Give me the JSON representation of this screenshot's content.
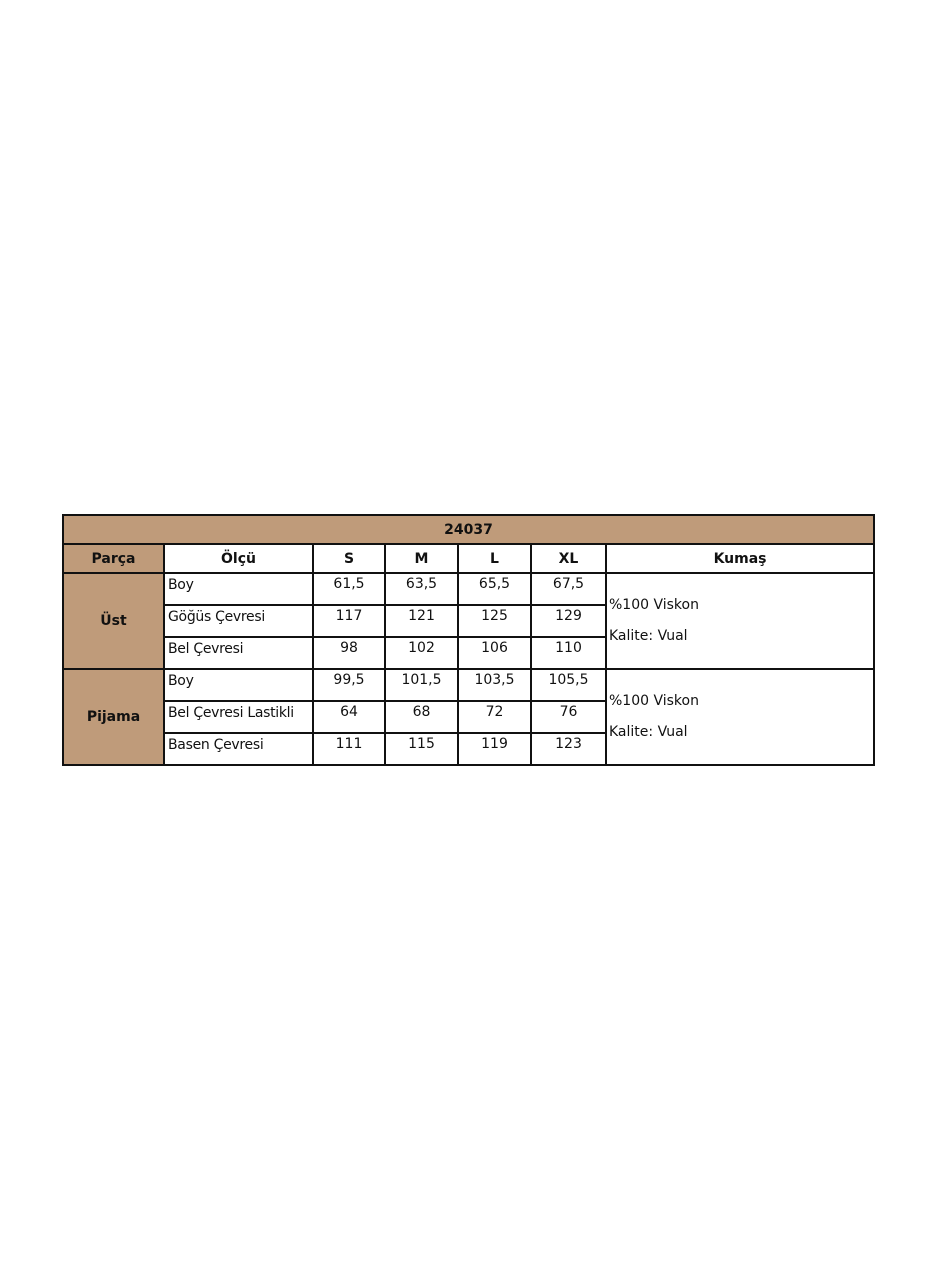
{
  "title": "24037",
  "headers": {
    "part": "Parça",
    "measure": "Ölçü",
    "sizes": [
      "S",
      "M",
      "L",
      "XL"
    ],
    "fabric": "Kumaş"
  },
  "colors": {
    "header_fill": "#bf9b7a",
    "border": "#111111"
  },
  "groups": [
    {
      "part": "Üst",
      "rows": [
        {
          "measure": "Boy",
          "values": [
            "61,5",
            "63,5",
            "65,5",
            "67,5"
          ]
        },
        {
          "measure": "Göğüs Çevresi",
          "values": [
            "117",
            "121",
            "125",
            "129"
          ]
        },
        {
          "measure": "Bel Çevresi",
          "values": [
            "98",
            "102",
            "106",
            "110"
          ]
        }
      ],
      "fabric": {
        "composition": "%100 Viskon",
        "quality": "Kalite: Vual"
      }
    },
    {
      "part": "Pijama",
      "rows": [
        {
          "measure": "Boy",
          "values": [
            "99,5",
            "101,5",
            "103,5",
            "105,5"
          ]
        },
        {
          "measure": "Bel Çevresi Lastikli",
          "values": [
            "64",
            "68",
            "72",
            "76"
          ]
        },
        {
          "measure": "Basen Çevresi",
          "values": [
            "111",
            "115",
            "119",
            "123"
          ]
        }
      ],
      "fabric": {
        "composition": "%100 Viskon",
        "quality": "Kalite: Vual"
      }
    }
  ]
}
